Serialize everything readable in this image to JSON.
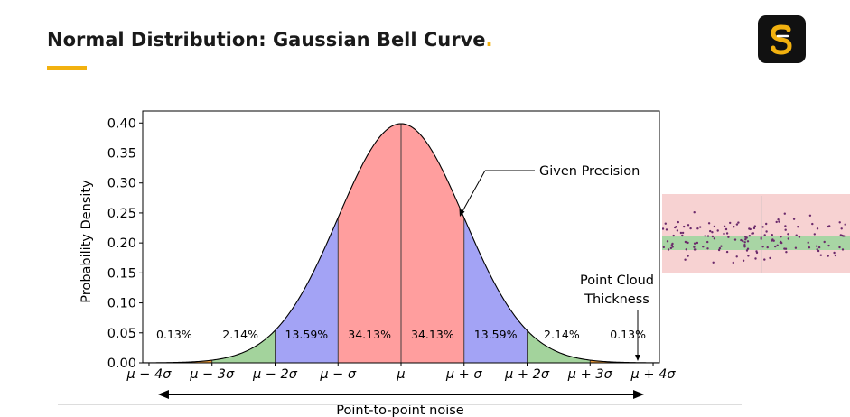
{
  "slide": {
    "title": "Normal Distribution: Gaussian Bell Curve",
    "title_dot": ".",
    "accent_color": "#f2b10f",
    "logo_letter": "S",
    "logo_icon": "s-logo-icon"
  },
  "chart_data": {
    "type": "area",
    "title": "",
    "xlabel": "",
    "ylabel": "Probability Density",
    "xlim": [
      -4,
      4
    ],
    "ylim": [
      0,
      0.4
    ],
    "yticks": [
      "0.00",
      "0.05",
      "0.10",
      "0.15",
      "0.20",
      "0.25",
      "0.30",
      "0.35",
      "0.40"
    ],
    "ytick_values": [
      0,
      0.05,
      0.1,
      0.15,
      0.2,
      0.25,
      0.3,
      0.35,
      0.4
    ],
    "xticks": [
      "μ − 4σ",
      "μ − 3σ",
      "μ − 2σ",
      "μ − σ",
      "μ",
      "μ + σ",
      "μ + 2σ",
      "μ + 3σ",
      "μ + 4σ"
    ],
    "xtick_values": [
      -4,
      -3,
      -2,
      -1,
      0,
      1,
      2,
      3,
      4
    ],
    "curve": "standard normal pdf",
    "regions": [
      {
        "from": -4,
        "to": -3,
        "color": "#e89a3c"
      },
      {
        "from": -3,
        "to": -2,
        "color": "#a3d39c"
      },
      {
        "from": -2,
        "to": -1,
        "color": "#a3a3f5"
      },
      {
        "from": -1,
        "to": 0,
        "color": "#ff9e9e"
      },
      {
        "from": 0,
        "to": 1,
        "color": "#ff9e9e"
      },
      {
        "from": 1,
        "to": 2,
        "color": "#a3a3f5"
      },
      {
        "from": 2,
        "to": 3,
        "color": "#a3d39c"
      },
      {
        "from": 3,
        "to": 4,
        "color": "#e89a3c"
      }
    ],
    "percent_labels": [
      {
        "text": "0.13%",
        "x": -3.6
      },
      {
        "text": "2.14%",
        "x": -2.55
      },
      {
        "text": "13.59%",
        "x": -1.5
      },
      {
        "text": "34.13%",
        "x": -0.5
      },
      {
        "text": "34.13%",
        "x": 0.5
      },
      {
        "text": "13.59%",
        "x": 1.5
      },
      {
        "text": "2.14%",
        "x": 2.55
      },
      {
        "text": "0.13%",
        "x": 3.6
      }
    ],
    "annotations": {
      "given_precision": "Given Precision",
      "point_cloud_line1": "Point Cloud",
      "point_cloud_line2": "Thickness",
      "noise_label": "Point-to-point noise"
    }
  },
  "point_cloud_panel": {
    "outer_band_color": "#f7d2d2",
    "inner_band_color": "#a8d5a4",
    "point_color": "#6b2a6b"
  }
}
